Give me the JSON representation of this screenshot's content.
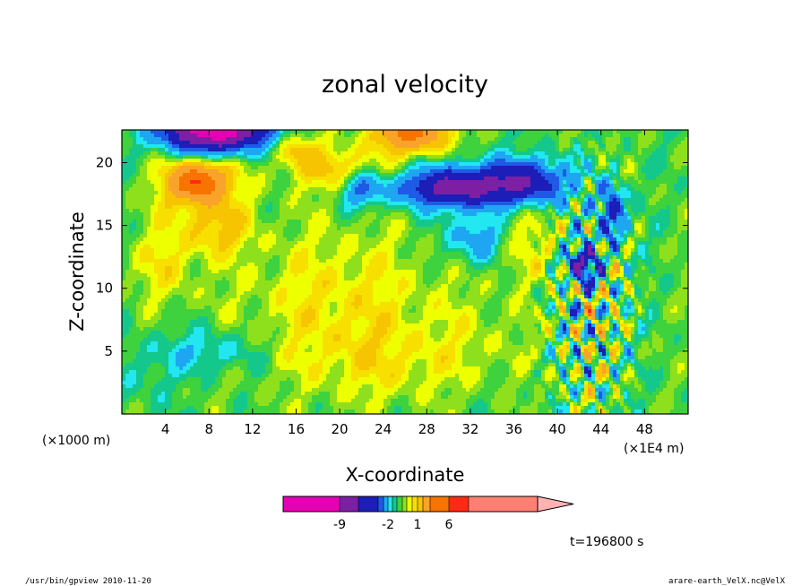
{
  "chart_data": {
    "type": "heatmap",
    "title": "zonal velocity",
    "xlabel": "X-coordinate",
    "ylabel": "Z-coordinate",
    "x_unit": "(×1E4 m)",
    "y_unit": "(×1000 m)",
    "xlim": [
      0,
      52
    ],
    "ylim": [
      0,
      22.6
    ],
    "x_ticks": [
      4,
      8,
      12,
      16,
      20,
      24,
      28,
      32,
      36,
      40,
      44,
      48
    ],
    "y_ticks": [
      5,
      10,
      15,
      20
    ],
    "colorbar": {
      "levels": [
        -12,
        -9,
        -6,
        -4,
        -3,
        -2,
        -1.5,
        -1,
        -0.5,
        0,
        0.5,
        1,
        2,
        4,
        6,
        8,
        14
      ],
      "colors": [
        "#e600b4",
        "#7d1fa3",
        "#1d1db8",
        "#1e5ae6",
        "#1fa6f2",
        "#22e6f0",
        "#14c88c",
        "#3ed23e",
        "#8fe01c",
        "#eeff00",
        "#f7df00",
        "#f6c400",
        "#f9a32a",
        "#f77400",
        "#ff2a14",
        "#ff8073",
        "#ffb3b3"
      ],
      "tick_labels": [
        {
          "value": -9,
          "text": "-9"
        },
        {
          "value": -2,
          "text": "-2"
        },
        {
          "value": 1,
          "text": "1"
        },
        {
          "value": 6,
          "text": "6"
        }
      ],
      "extend": "max"
    },
    "time_label": "t=196800 s",
    "grid": false,
    "regions": [
      {
        "desc": "negative core top-left",
        "x": 8.5,
        "z": 22,
        "value": -9
      },
      {
        "desc": "positive core upper-left",
        "x": 7,
        "z": 18,
        "value": 6
      },
      {
        "desc": "positive core top-center",
        "x": 26.5,
        "z": 22,
        "value": 6
      },
      {
        "desc": "negative jet",
        "x": 31,
        "z": 18,
        "value": -4
      },
      {
        "desc": "mid-level yellow",
        "x": 20,
        "z": 10,
        "value": 0.3
      },
      {
        "desc": "low-level cyan",
        "x": 8,
        "z": 5,
        "value": -1.5
      },
      {
        "desc": "turbulent column",
        "x": 43,
        "z": 10,
        "value": -4
      }
    ]
  },
  "footer": {
    "left": "/usr/bin/gpview  2010-11-20",
    "right": "arare-earth_VelX.nc@VelX"
  }
}
